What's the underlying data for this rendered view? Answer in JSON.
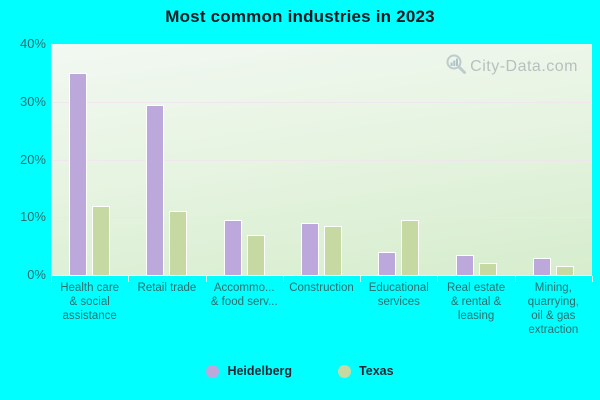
{
  "title": "Most common industries in 2023",
  "watermark": {
    "text": "City-Data.com"
  },
  "colors": {
    "background": "#00FFFF",
    "heidelberg": "#bda8dc",
    "texas": "#c6d9a3",
    "axis_text": "#2d6e6e",
    "title_text": "#131b23",
    "grid_line": "#f0e4ee",
    "watermark_text": "#8d949c"
  },
  "chart_data": {
    "type": "bar",
    "title": "Most common industries in 2023",
    "categories": [
      "Health care & social assistance",
      "Retail trade",
      "Accommo... & food serv...",
      "Construction",
      "Educational services",
      "Real estate & rental & leasing",
      "Mining, quarrying, oil & gas extraction"
    ],
    "category_lines": [
      [
        "Health care",
        "& social",
        "assistance"
      ],
      [
        "Retail trade"
      ],
      [
        "Accommo...",
        "& food serv..."
      ],
      [
        "Construction"
      ],
      [
        "Educational",
        "services"
      ],
      [
        "Real estate",
        "& rental &",
        "leasing"
      ],
      [
        "Mining,",
        "quarrying,",
        "oil & gas",
        "extraction"
      ]
    ],
    "series": [
      {
        "name": "Heidelberg",
        "color": "#bda8dc",
        "values": [
          35,
          29.5,
          9.5,
          9,
          4,
          3.5,
          3
        ]
      },
      {
        "name": "Texas",
        "color": "#c6d9a3",
        "values": [
          12,
          11,
          7,
          8.5,
          9.5,
          2,
          1.5
        ]
      }
    ],
    "xlabel": "",
    "ylabel": "",
    "ylim": [
      0,
      40
    ],
    "y_ticks": [
      "40%",
      "30%",
      "20%",
      "10%",
      "0%"
    ],
    "grid": true,
    "legend_position": "bottom"
  },
  "legend": {
    "items": [
      {
        "label": "Heidelberg",
        "color": "#bda8dc"
      },
      {
        "label": "Texas",
        "color": "#c6d9a3"
      }
    ]
  }
}
